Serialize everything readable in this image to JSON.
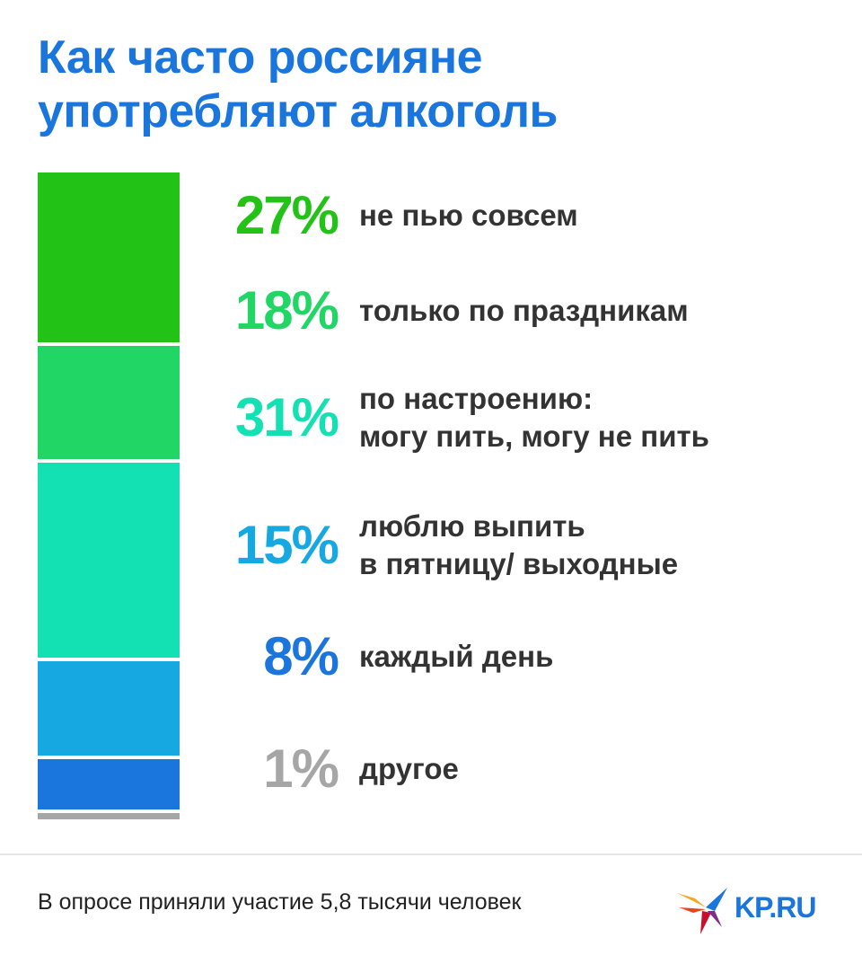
{
  "title": {
    "line1": "Как часто россияне",
    "line2": "употребляют алкоголь"
  },
  "chart_data": {
    "type": "bar",
    "stacked": true,
    "orientation": "vertical",
    "categories": [
      "не пью совсем",
      "только по праздникам",
      "по настроению: могу пить, могу не пить",
      "люблю выпить в пятницу/ выходные",
      "каждый день",
      "другое"
    ],
    "values": [
      27,
      18,
      31,
      15,
      8,
      1
    ],
    "unit": "%",
    "colors": [
      "#22c216",
      "#22d666",
      "#13e1b3",
      "#16a8e0",
      "#1a75dd",
      "#a6a6a6"
    ],
    "grid": false,
    "legend": "none"
  },
  "items": [
    {
      "pct": "27%",
      "lines": [
        "не пью совсем"
      ]
    },
    {
      "pct": "18%",
      "lines": [
        "только по праздникам"
      ]
    },
    {
      "pct": "31%",
      "lines": [
        "по настроению:",
        "могу пить, могу не пить"
      ]
    },
    {
      "pct": "15%",
      "lines": [
        "люблю выпить",
        "в пятницу/ выходные"
      ]
    },
    {
      "pct": "8%",
      "lines": [
        "каждый день"
      ]
    },
    {
      "pct": "1%",
      "lines": [
        "другое"
      ]
    }
  ],
  "footnote": "В опросе приняли участие 5,8 тысячи человек",
  "logo": {
    "text": "KP.RU",
    "icon": "swallow-bird-icon",
    "accent": "#e8441c"
  }
}
